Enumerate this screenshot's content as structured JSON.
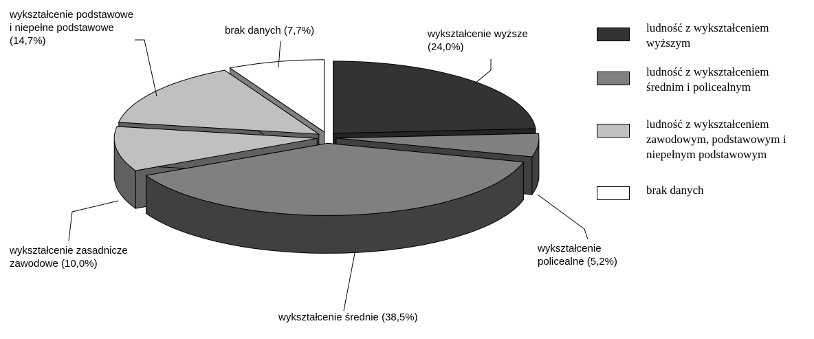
{
  "chart_data": {
    "type": "pie3d",
    "categories": [
      "wykształcenie wyższe",
      "wykształcenie policealne",
      "wykształcenie średnie",
      "wykształcenie zasadnicze zawodowe",
      "wykształcenie podstawowe i niepełne podstawowe",
      "brak danych"
    ],
    "values": [
      24.0,
      5.2,
      38.5,
      10.0,
      14.7,
      7.7
    ],
    "value_labels": [
      "(24,0%)",
      "(5,2%)",
      "(38,5%)",
      "(10,0%)",
      "(14,7%)",
      "(7,7%)"
    ],
    "colors": [
      "#333333",
      "#808080",
      "#808080",
      "#c0c0c0",
      "#c0c0c0",
      "#ffffff"
    ],
    "legend": {
      "names": [
        "ludność z wykształceniem wyższym",
        "ludność z wykształceniem średnim i policealnym",
        "ludność z wykształceniem zawodowym, podstawowym i niepełnym podstawowym",
        "brak danych"
      ],
      "colors": [
        "#333333",
        "#808080",
        "#c0c0c0",
        "#ffffff"
      ]
    }
  }
}
